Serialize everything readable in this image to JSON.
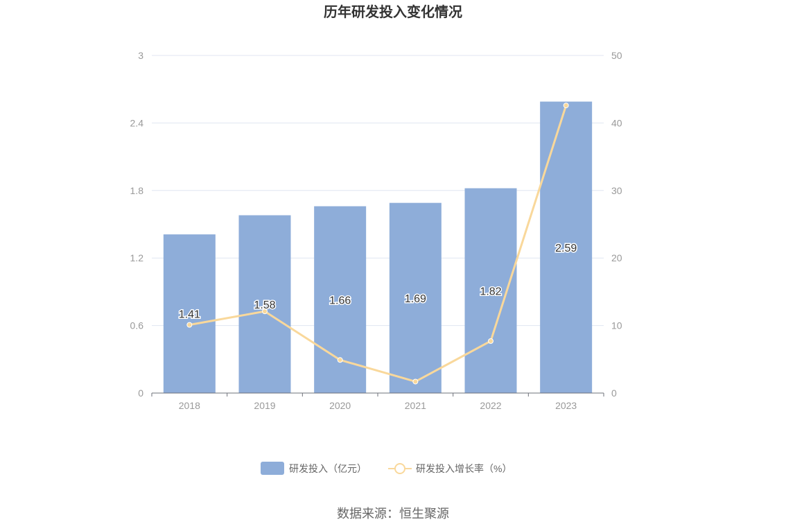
{
  "chart_data": {
    "type": "bar",
    "title": "历年研发投入变化情况",
    "categories": [
      "2018",
      "2019",
      "2020",
      "2021",
      "2022",
      "2023"
    ],
    "series": [
      {
        "name": "研发投入（亿元）",
        "type": "bar",
        "axis": "left",
        "values": [
          1.41,
          1.58,
          1.66,
          1.69,
          1.82,
          2.59
        ],
        "labels": [
          "1.41",
          "1.58",
          "1.66",
          "1.69",
          "1.82",
          "2.59"
        ],
        "color": "#8eadd9"
      },
      {
        "name": "研发投入增长率（%）",
        "type": "line",
        "axis": "right",
        "values": [
          10.1,
          12.1,
          4.9,
          1.7,
          7.7,
          42.6
        ],
        "color": "#f9d89b"
      }
    ],
    "y_left": {
      "min": 0,
      "max": 3,
      "ticks": [
        "0",
        "0.6",
        "1.2",
        "1.8",
        "2.4",
        "3"
      ]
    },
    "y_right": {
      "min": 0,
      "max": 50,
      "ticks": [
        "0",
        "10",
        "20",
        "30",
        "40",
        "50"
      ]
    },
    "grid": true,
    "legend_position": "bottom"
  },
  "source": "数据来源：恒生聚源"
}
